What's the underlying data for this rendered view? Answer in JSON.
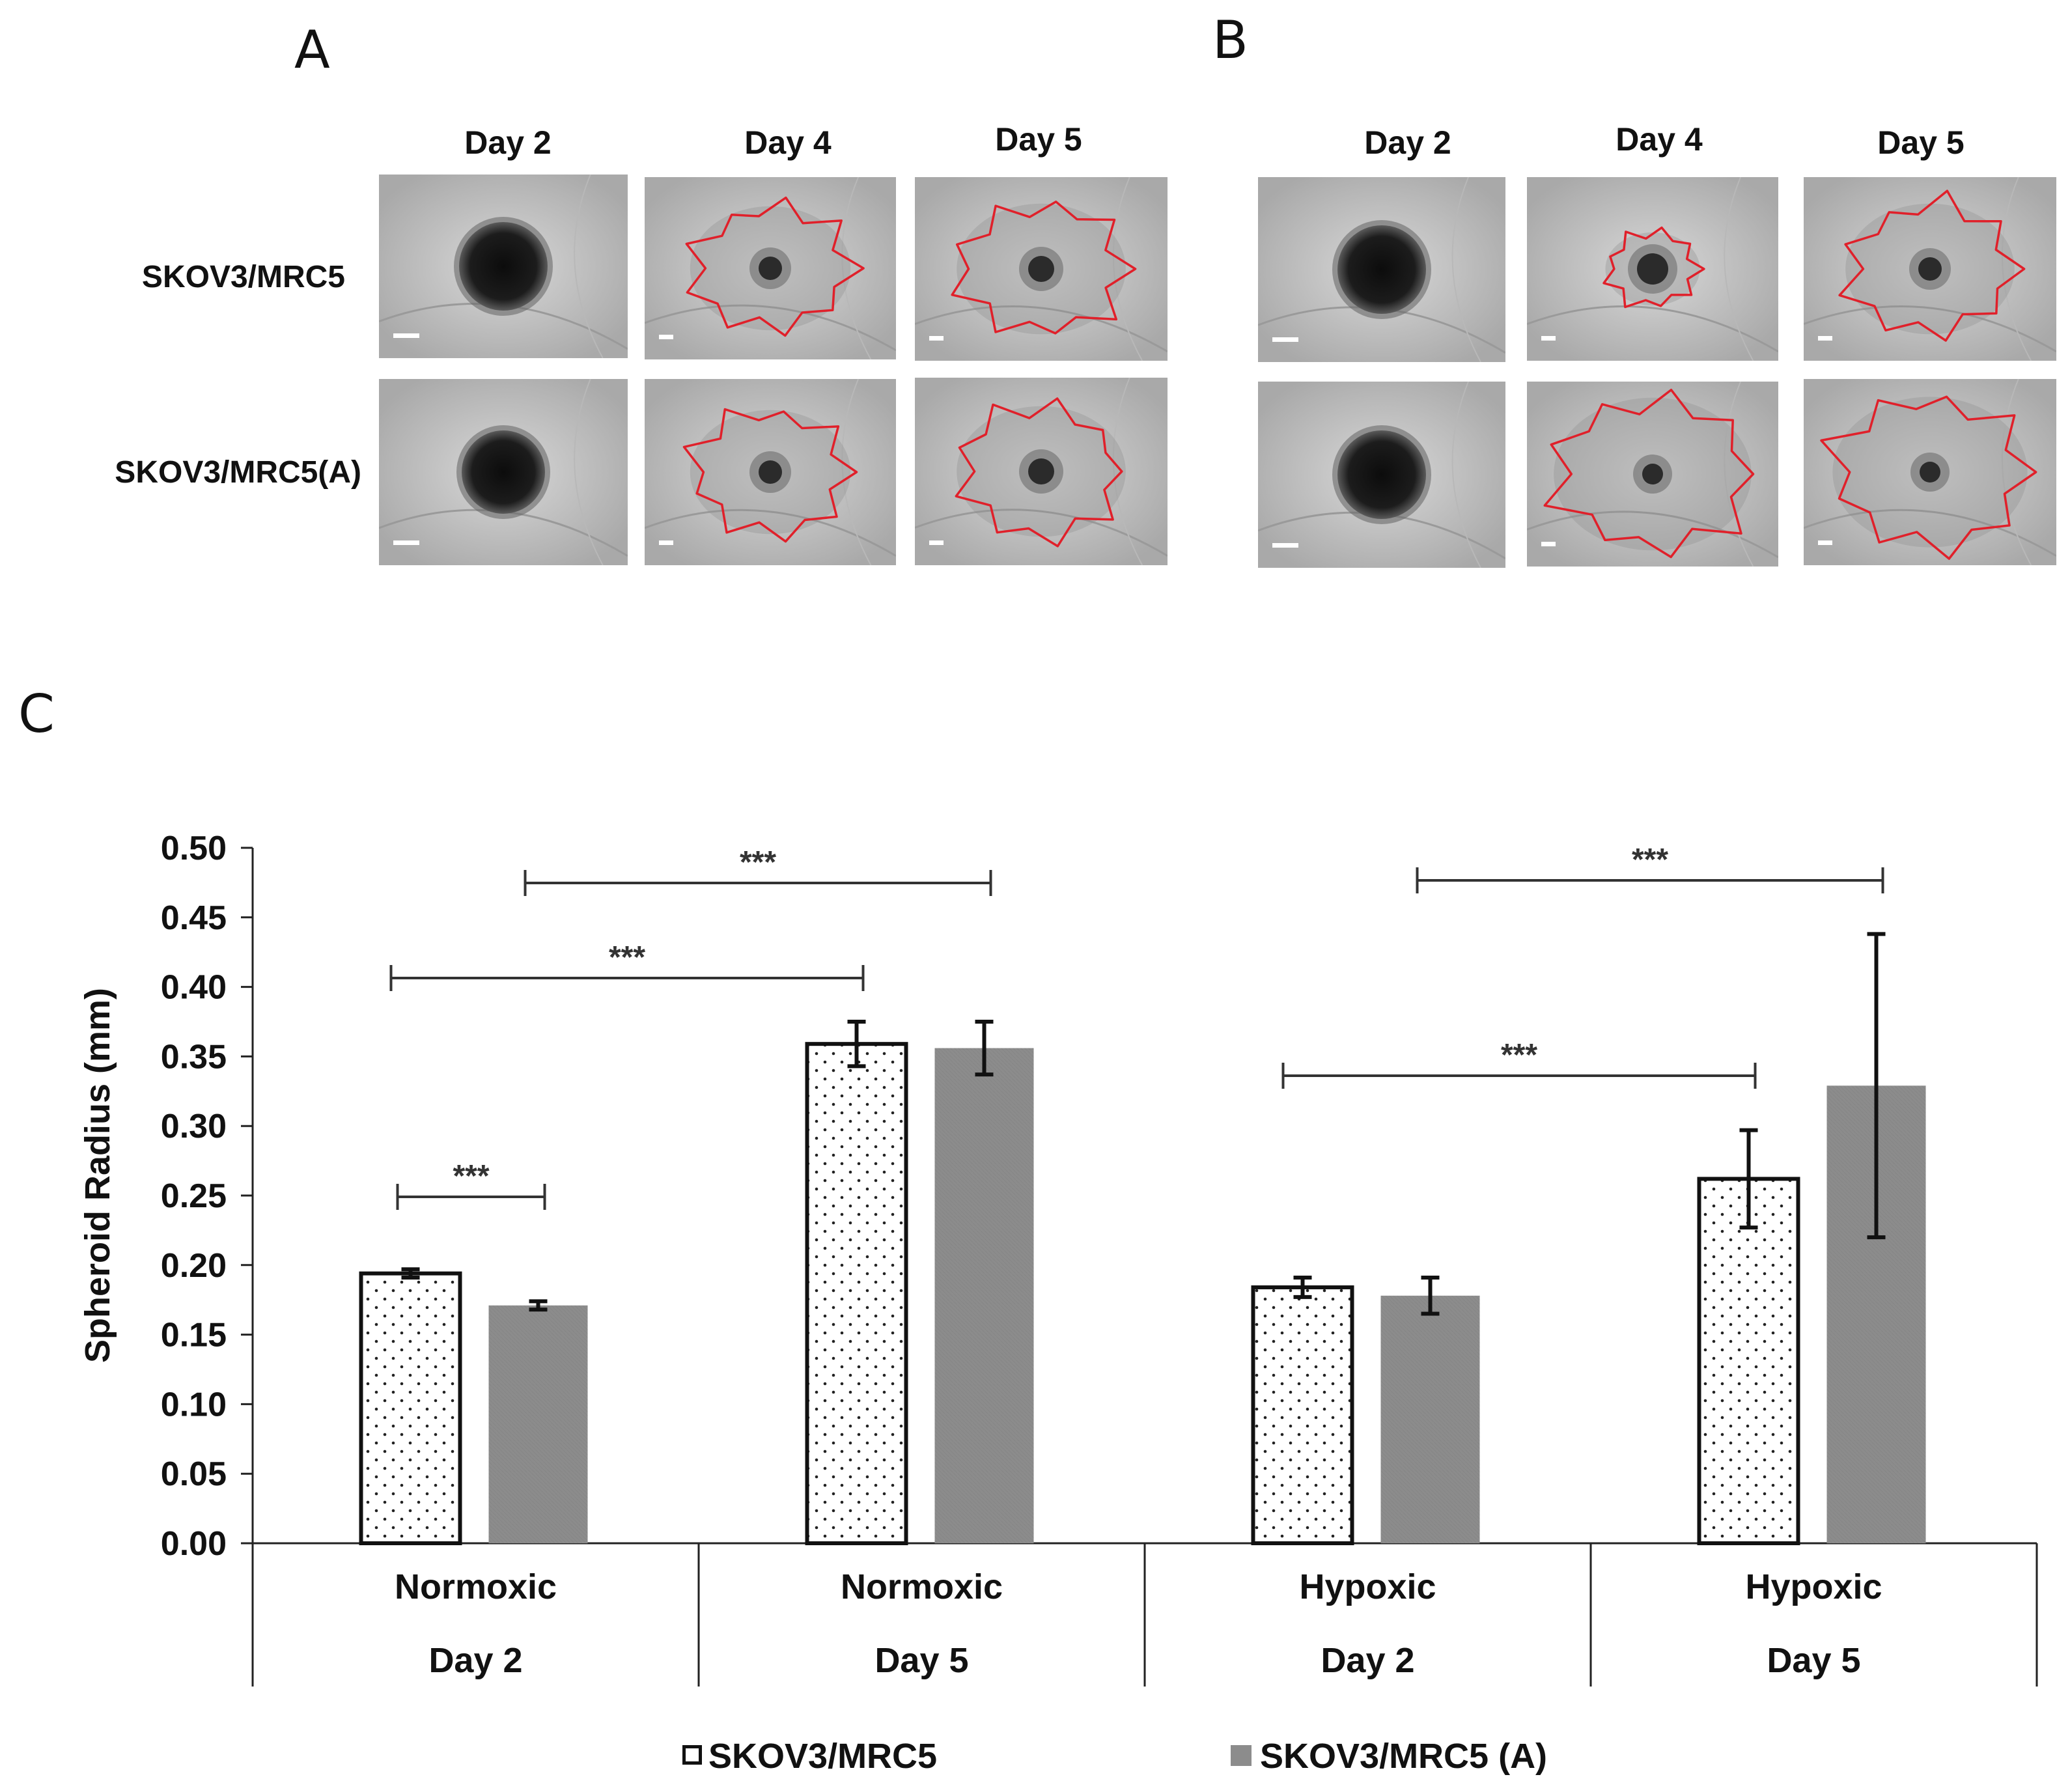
{
  "panels": {
    "a": {
      "letter": "A",
      "days": [
        "Day 2",
        "Day 4",
        "Day 5"
      ],
      "rows": [
        "SKOV3/MRC5",
        "SKOV3/MRC5(A)"
      ]
    },
    "b": {
      "letter": "B",
      "days": [
        "Day 2",
        "Day 4",
        "Day 5"
      ]
    },
    "c": {
      "letter": "C"
    }
  },
  "chart_data": {
    "type": "bar",
    "ylabel": "Spheroid Radius (mm)",
    "ylim": [
      0,
      0.5
    ],
    "yticks": [
      "0.00",
      "0.05",
      "0.10",
      "0.15",
      "0.20",
      "0.25",
      "0.30",
      "0.35",
      "0.40",
      "0.45",
      "0.50"
    ],
    "categories": [
      {
        "condition": "Normoxic",
        "day": "Day 2"
      },
      {
        "condition": "Normoxic",
        "day": "Day 5"
      },
      {
        "condition": "Hypoxic",
        "day": "Day 2"
      },
      {
        "condition": "Hypoxic",
        "day": "Day 5"
      }
    ],
    "series": [
      {
        "name": "SKOV3/MRC5",
        "values": [
          0.194,
          0.359,
          0.184,
          0.262
        ],
        "errors": [
          0.003,
          0.016,
          0.007,
          0.035
        ],
        "fill": "dotted-white"
      },
      {
        "name": "SKOV3/MRC5 (A)",
        "values": [
          0.171,
          0.356,
          0.178,
          0.329
        ],
        "errors": [
          0.003,
          0.019,
          0.013,
          0.109
        ],
        "fill": "#8c8c8c"
      }
    ],
    "significance": [
      {
        "label": "***",
        "from": [
          0,
          0
        ],
        "to": [
          0,
          1
        ]
      },
      {
        "label": "***",
        "from": [
          0,
          0
        ],
        "to": [
          1,
          0
        ]
      },
      {
        "label": "***",
        "from": [
          0,
          1
        ],
        "to": [
          1,
          1
        ]
      },
      {
        "label": "***",
        "from": [
          2,
          0
        ],
        "to": [
          3,
          0
        ]
      },
      {
        "label": "***",
        "from": [
          2,
          1
        ],
        "to": [
          3,
          1
        ]
      }
    ]
  }
}
